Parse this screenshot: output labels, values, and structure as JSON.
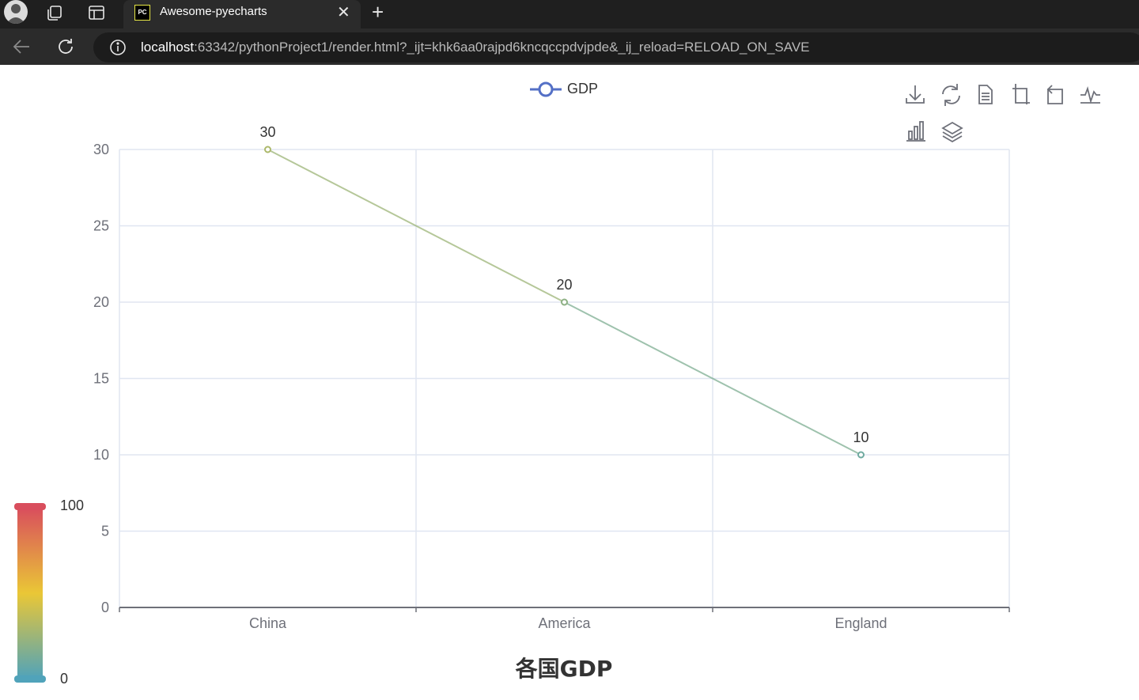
{
  "browser": {
    "tab_title": "Awesome-pyecharts",
    "tab_favicon_text": "PC",
    "url_host": "localhost",
    "url_rest": ":63342/pythonProject1/render.html?_ijt=khk6aa0rajpd6kncqccpdvjpde&_ij_reload=RELOAD_ON_SAVE",
    "close_glyph": "✕",
    "new_tab_glyph": "+"
  },
  "colors": {
    "gradient": [
      "#50a3ba",
      "#eac736",
      "#d94e5d"
    ],
    "grid": "#e0e6f1",
    "axis": "#6e7079",
    "legend_icon": "#5470c6"
  },
  "toolbox": {
    "icons": [
      "download-icon",
      "restore-icon",
      "data-view-icon",
      "zoom-icon",
      "zoom-back-icon",
      "line-type-icon",
      "bar-type-icon",
      "stack-icon"
    ]
  },
  "chart_data": {
    "type": "line",
    "title": "各国GDP",
    "categories": [
      "China",
      "America",
      "England"
    ],
    "series": [
      {
        "name": "GDP",
        "values": [
          30,
          20,
          10
        ]
      }
    ],
    "ylim": [
      0,
      30
    ],
    "y_ticks": [
      0,
      5,
      10,
      15,
      20,
      25,
      30
    ],
    "grid": true,
    "legend_position": "top-center",
    "visual_map": {
      "min": 0,
      "max": 100,
      "min_label": "0",
      "max_label": "100",
      "position": "bottom-left"
    }
  }
}
